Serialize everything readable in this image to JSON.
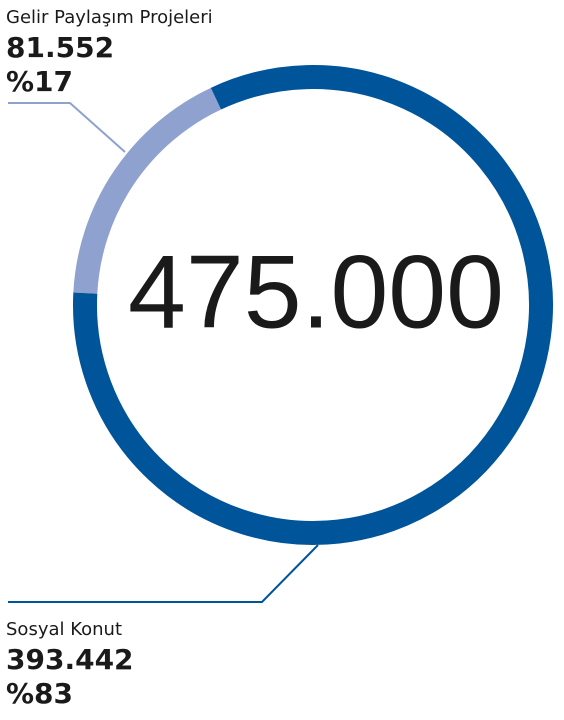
{
  "chart_data": {
    "type": "donut",
    "categories": [
      "Gelir Paylaşım Projeleri",
      "Sosyal Konut"
    ],
    "values": [
      81552,
      393442
    ],
    "value_labels": [
      "81.552",
      "393.442"
    ],
    "percents": [
      17,
      83
    ],
    "percent_labels": [
      "%17",
      "%83"
    ],
    "colors": [
      "#8fa1cf",
      "#00549a"
    ],
    "center_label": "475.000"
  }
}
